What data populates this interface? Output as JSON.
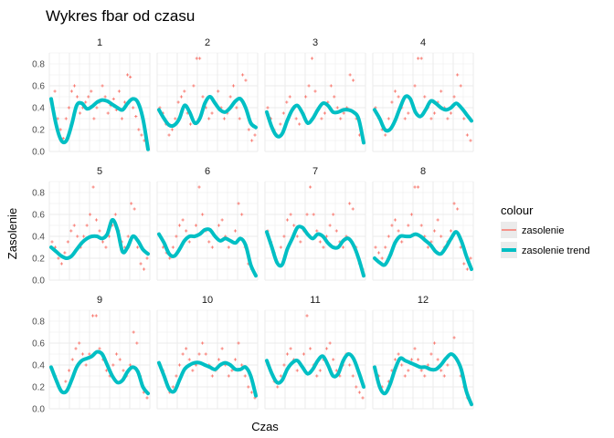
{
  "chart_data": {
    "type": "scatter",
    "title": "Wykres fbar od czasu",
    "xlabel": "Czas",
    "ylabel": "Zasolenie",
    "ylim": [
      0,
      0.9
    ],
    "y_ticks": [
      0.0,
      0.2,
      0.4,
      0.6,
      0.8
    ],
    "y_tick_labels": [
      "0.0",
      "0.2",
      "0.4",
      "0.6",
      "0.8"
    ],
    "grid": true,
    "legend": {
      "title": "colour",
      "position": "right",
      "entries": [
        {
          "label": "zasolenie",
          "color": "#F8766D"
        },
        {
          "label": "zasolenie trend",
          "color": "#00BFC4"
        }
      ]
    },
    "panels": [
      {
        "label": "1",
        "trend": [
          0.48,
          0.24,
          0.1,
          0.1,
          0.24,
          0.42,
          0.44,
          0.39,
          0.41,
          0.45,
          0.47,
          0.46,
          0.43,
          0.4,
          0.38,
          0.44,
          0.48,
          0.45,
          0.3,
          0.02
        ],
        "points": [
          0.45,
          0.55,
          0.3,
          0.2,
          0.12,
          0.3,
          0.4,
          0.55,
          0.6,
          0.5,
          0.35,
          0.4,
          0.45,
          0.5,
          0.55,
          0.3,
          0.4,
          0.45,
          0.6,
          0.5,
          0.35,
          0.42,
          0.48,
          0.38,
          0.55,
          0.3,
          0.45,
          0.7,
          0.68,
          0.4,
          0.32,
          0.2,
          0.15,
          0.1,
          0.05
        ]
      },
      {
        "label": "2",
        "trend": [
          0.38,
          0.3,
          0.24,
          0.24,
          0.3,
          0.42,
          0.36,
          0.26,
          0.3,
          0.44,
          0.5,
          0.44,
          0.38,
          0.36,
          0.4,
          0.46,
          0.48,
          0.4,
          0.26,
          0.22
        ],
        "points": [
          0.4,
          0.35,
          0.25,
          0.15,
          0.2,
          0.3,
          0.45,
          0.5,
          0.55,
          0.35,
          0.25,
          0.6,
          0.85,
          0.85,
          0.5,
          0.4,
          0.3,
          0.35,
          0.45,
          0.55,
          0.4,
          0.3,
          0.35,
          0.5,
          0.6,
          0.4,
          0.3,
          0.7,
          0.65,
          0.2,
          0.1,
          0.15
        ]
      },
      {
        "label": "3",
        "trend": [
          0.36,
          0.22,
          0.14,
          0.16,
          0.28,
          0.38,
          0.42,
          0.35,
          0.26,
          0.3,
          0.38,
          0.44,
          0.42,
          0.36,
          0.36,
          0.38,
          0.38,
          0.36,
          0.3,
          0.08
        ],
        "points": [
          0.4,
          0.3,
          0.2,
          0.15,
          0.25,
          0.35,
          0.45,
          0.5,
          0.4,
          0.3,
          0.25,
          0.35,
          0.5,
          0.6,
          0.85,
          0.55,
          0.4,
          0.3,
          0.35,
          0.45,
          0.6,
          0.5,
          0.4,
          0.3,
          0.35,
          0.4,
          0.7,
          0.65,
          0.3,
          0.15,
          0.1
        ]
      },
      {
        "label": "4",
        "trend": [
          0.38,
          0.3,
          0.2,
          0.2,
          0.28,
          0.4,
          0.5,
          0.48,
          0.36,
          0.32,
          0.38,
          0.46,
          0.44,
          0.4,
          0.38,
          0.4,
          0.44,
          0.4,
          0.34,
          0.28
        ],
        "points": [
          0.4,
          0.3,
          0.2,
          0.15,
          0.3,
          0.45,
          0.55,
          0.5,
          0.4,
          0.3,
          0.35,
          0.45,
          0.6,
          0.85,
          0.85,
          0.5,
          0.4,
          0.3,
          0.35,
          0.45,
          0.55,
          0.4,
          0.3,
          0.35,
          0.5,
          0.7,
          0.6,
          0.3,
          0.15,
          0.1
        ]
      },
      {
        "label": "5",
        "trend": [
          0.3,
          0.26,
          0.22,
          0.2,
          0.22,
          0.28,
          0.34,
          0.38,
          0.4,
          0.4,
          0.38,
          0.42,
          0.55,
          0.46,
          0.26,
          0.3,
          0.4,
          0.36,
          0.28,
          0.24
        ],
        "points": [
          0.35,
          0.3,
          0.2,
          0.15,
          0.25,
          0.35,
          0.45,
          0.5,
          0.4,
          0.3,
          0.4,
          0.5,
          0.6,
          0.85,
          0.55,
          0.45,
          0.35,
          0.3,
          0.4,
          0.5,
          0.6,
          0.45,
          0.35,
          0.3,
          0.4,
          0.7,
          0.65,
          0.3,
          0.15,
          0.1,
          0.2
        ]
      },
      {
        "label": "6",
        "trend": [
          0.42,
          0.34,
          0.24,
          0.22,
          0.28,
          0.36,
          0.4,
          0.4,
          0.42,
          0.46,
          0.46,
          0.4,
          0.36,
          0.38,
          0.36,
          0.34,
          0.38,
          0.32,
          0.14,
          0.04
        ],
        "points": [
          0.4,
          0.3,
          0.25,
          0.2,
          0.3,
          0.4,
          0.5,
          0.55,
          0.45,
          0.35,
          0.4,
          0.5,
          0.85,
          0.6,
          0.45,
          0.35,
          0.3,
          0.4,
          0.5,
          0.55,
          0.4,
          0.3,
          0.35,
          0.45,
          0.7,
          0.6,
          0.3,
          0.15,
          0.1,
          0.05
        ]
      },
      {
        "label": "7",
        "trend": [
          0.44,
          0.3,
          0.16,
          0.14,
          0.28,
          0.38,
          0.48,
          0.48,
          0.42,
          0.38,
          0.42,
          0.4,
          0.34,
          0.3,
          0.3,
          0.36,
          0.38,
          0.32,
          0.2,
          0.04
        ],
        "points": [
          0.45,
          0.35,
          0.25,
          0.15,
          0.3,
          0.4,
          0.55,
          0.6,
          0.5,
          0.4,
          0.35,
          0.45,
          0.6,
          0.85,
          0.6,
          0.45,
          0.35,
          0.3,
          0.4,
          0.5,
          0.6,
          0.45,
          0.35,
          0.3,
          0.4,
          0.7,
          0.65,
          0.3,
          0.15,
          0.1
        ]
      },
      {
        "label": "8",
        "trend": [
          0.2,
          0.16,
          0.14,
          0.22,
          0.34,
          0.4,
          0.4,
          0.4,
          0.42,
          0.4,
          0.36,
          0.32,
          0.26,
          0.24,
          0.3,
          0.38,
          0.44,
          0.36,
          0.22,
          0.1
        ],
        "points": [
          0.3,
          0.25,
          0.2,
          0.3,
          0.4,
          0.5,
          0.55,
          0.45,
          0.35,
          0.4,
          0.5,
          0.6,
          0.85,
          0.85,
          0.5,
          0.4,
          0.3,
          0.35,
          0.45,
          0.55,
          0.4,
          0.3,
          0.35,
          0.45,
          0.7,
          0.65,
          0.3,
          0.15,
          0.1,
          0.2
        ]
      },
      {
        "label": "9",
        "trend": [
          0.38,
          0.26,
          0.16,
          0.16,
          0.26,
          0.38,
          0.44,
          0.46,
          0.48,
          0.52,
          0.5,
          0.4,
          0.3,
          0.24,
          0.26,
          0.34,
          0.38,
          0.34,
          0.2,
          0.14
        ],
        "points": [
          0.35,
          0.3,
          0.2,
          0.15,
          0.25,
          0.35,
          0.45,
          0.55,
          0.6,
          0.5,
          0.4,
          0.5,
          0.85,
          0.85,
          0.55,
          0.45,
          0.35,
          0.3,
          0.4,
          0.5,
          0.45,
          0.35,
          0.3,
          0.4,
          0.7,
          0.6,
          0.3,
          0.15,
          0.1
        ]
      },
      {
        "label": "10",
        "trend": [
          0.42,
          0.3,
          0.18,
          0.16,
          0.26,
          0.36,
          0.4,
          0.42,
          0.42,
          0.4,
          0.38,
          0.36,
          0.4,
          0.42,
          0.4,
          0.36,
          0.36,
          0.38,
          0.3,
          0.12
        ],
        "points": [
          0.4,
          0.35,
          0.25,
          0.15,
          0.2,
          0.3,
          0.4,
          0.5,
          0.55,
          0.45,
          0.35,
          0.4,
          0.5,
          0.6,
          0.5,
          0.4,
          0.3,
          0.35,
          0.45,
          0.55,
          0.4,
          0.3,
          0.35,
          0.45,
          0.6,
          0.4,
          0.3,
          0.2,
          0.15,
          0.1
        ]
      },
      {
        "label": "11",
        "trend": [
          0.44,
          0.32,
          0.24,
          0.26,
          0.36,
          0.42,
          0.44,
          0.38,
          0.32,
          0.36,
          0.44,
          0.48,
          0.4,
          0.3,
          0.32,
          0.44,
          0.5,
          0.46,
          0.34,
          0.2
        ],
        "points": [
          0.4,
          0.35,
          0.25,
          0.2,
          0.3,
          0.4,
          0.5,
          0.55,
          0.45,
          0.35,
          0.4,
          0.5,
          0.85,
          0.55,
          0.4,
          0.3,
          0.35,
          0.45,
          0.55,
          0.6,
          0.45,
          0.35,
          0.3,
          0.4,
          0.5,
          0.4,
          0.3,
          0.2,
          0.15,
          0.1
        ]
      },
      {
        "label": "12",
        "trend": [
          0.38,
          0.2,
          0.14,
          0.22,
          0.36,
          0.46,
          0.44,
          0.42,
          0.4,
          0.38,
          0.38,
          0.36,
          0.36,
          0.4,
          0.46,
          0.5,
          0.46,
          0.36,
          0.16,
          0.04
        ],
        "points": [
          0.35,
          0.3,
          0.2,
          0.15,
          0.25,
          0.35,
          0.45,
          0.5,
          0.4,
          0.3,
          0.35,
          0.45,
          0.55,
          0.45,
          0.35,
          0.3,
          0.4,
          0.5,
          0.6,
          0.45,
          0.35,
          0.3,
          0.4,
          0.5,
          0.65,
          0.45,
          0.3,
          0.2,
          0.1,
          0.05
        ]
      }
    ]
  }
}
